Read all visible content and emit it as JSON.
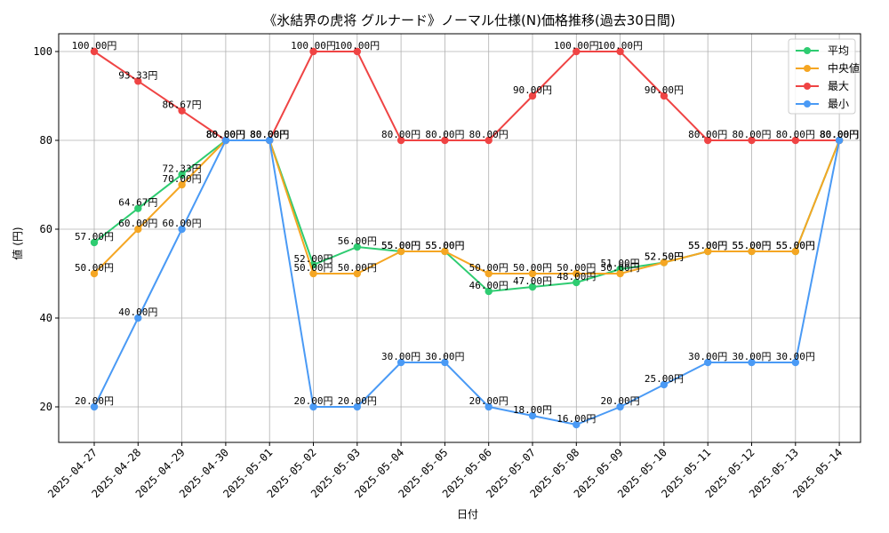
{
  "chart_data": {
    "type": "line",
    "title": "《氷結界の虎将 グルナード》ノーマル仕様(N)価格推移(過去30日間)",
    "xlabel": "日付",
    "ylabel": "値 (円)",
    "ylim": [
      12,
      104
    ],
    "yticks": [
      20,
      40,
      60,
      80,
      100
    ],
    "grid": true,
    "legend_position": "top-right",
    "value_suffix": "円",
    "categories": [
      "2025-04-27",
      "2025-04-28",
      "2025-04-29",
      "2025-04-30",
      "2025-05-01",
      "2025-05-02",
      "2025-05-03",
      "2025-05-04",
      "2025-05-05",
      "2025-05-06",
      "2025-05-07",
      "2025-05-08",
      "2025-05-09",
      "2025-05-10",
      "2025-05-11",
      "2025-05-12",
      "2025-05-13",
      "2025-05-14"
    ],
    "series": [
      {
        "name": "平均",
        "color": "#2ecc71",
        "values": [
          57.0,
          64.67,
          72.33,
          80.0,
          80.0,
          52.0,
          56.0,
          55.0,
          55.0,
          46.0,
          47.0,
          48.0,
          51.0,
          52.5,
          55.0,
          55.0,
          55.0,
          80.0
        ]
      },
      {
        "name": "中央値",
        "color": "#f5a623",
        "values": [
          50.0,
          60.0,
          70.0,
          80.0,
          80.0,
          50.0,
          50.0,
          55.0,
          55.0,
          50.0,
          50.0,
          50.0,
          50.0,
          52.5,
          55.0,
          55.0,
          55.0,
          80.0
        ]
      },
      {
        "name": "最大",
        "color": "#ef4444",
        "values": [
          100.0,
          93.33,
          86.67,
          80.0,
          80.0,
          100.0,
          100.0,
          80.0,
          80.0,
          80.0,
          90.0,
          100.0,
          100.0,
          90.0,
          80.0,
          80.0,
          80.0,
          80.0
        ]
      },
      {
        "name": "最小",
        "color": "#4a9af5",
        "values": [
          20.0,
          40.0,
          60.0,
          80.0,
          80.0,
          20.0,
          20.0,
          30.0,
          30.0,
          20.0,
          18.0,
          16.0,
          20.0,
          25.0,
          30.0,
          30.0,
          30.0,
          80.0
        ]
      }
    ]
  }
}
